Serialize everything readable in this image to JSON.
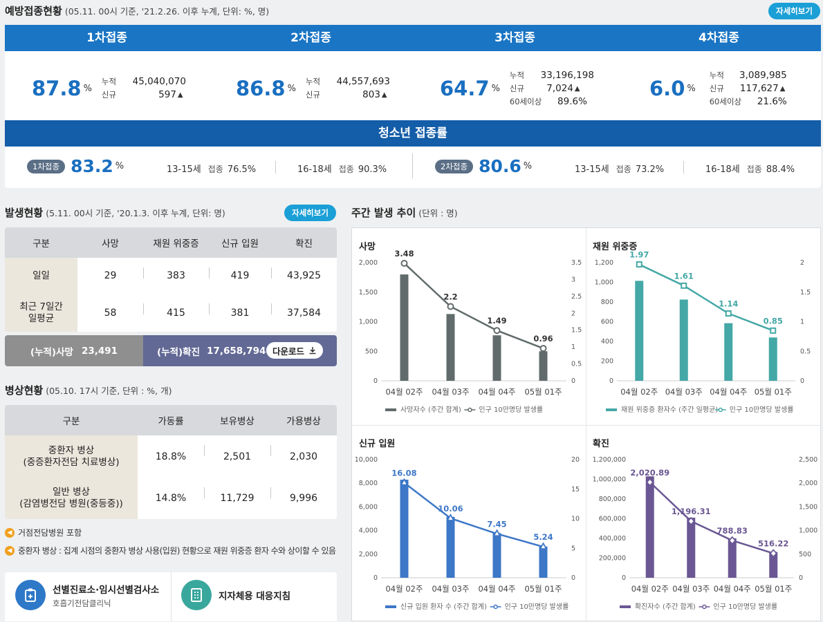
{
  "vacc": {
    "title": "예방접종현황",
    "subtitle": "(05.11. 00시 기준, '21.2.26. 이후 누계, 단위: %, 명)",
    "detail_btn": "자세히보기",
    "doses": [
      {
        "label": "1차접종",
        "rate": "87.8",
        "unit": "%",
        "cum_k": "누적",
        "cum_v": "45,040,070",
        "new_k": "신규",
        "new_v": "597",
        "arrow": "▲"
      },
      {
        "label": "2차접종",
        "rate": "86.8",
        "unit": "%",
        "cum_k": "누적",
        "cum_v": "44,557,693",
        "new_k": "신규",
        "new_v": "803",
        "arrow": "▲"
      },
      {
        "label": "3차접종",
        "rate": "64.7",
        "unit": "%",
        "cum_k": "누적",
        "cum_v": "33,196,198",
        "new_k": "신규",
        "new_v": "7,024",
        "arrow": "▲",
        "old_k": "60세이상",
        "old_v": "89.6%"
      },
      {
        "label": "4차접종",
        "rate": "6.0",
        "unit": "%",
        "cum_k": "누적",
        "cum_v": "3,089,985",
        "new_k": "신규",
        "new_v": "117,627",
        "arrow": "▲",
        "old_k": "60세이상",
        "old_v": "21.6%"
      }
    ],
    "teen": {
      "title": "청소년 접종률",
      "d1": {
        "pill": "1차접종",
        "rate": "83.2",
        "unit": "%",
        "a_age": "13-15세",
        "a_k": "접종",
        "a_v": "76.5%",
        "b_age": "16-18세",
        "b_k": "접종",
        "b_v": "90.3%"
      },
      "d2": {
        "pill": "2차접종",
        "rate": "80.6",
        "unit": "%",
        "a_age": "13-15세",
        "a_k": "접종",
        "a_v": "73.2%",
        "b_age": "16-18세",
        "b_k": "접종",
        "b_v": "88.4%"
      }
    }
  },
  "occur": {
    "title": "발생현황",
    "subtitle": "(5.11. 00시 기준, '20.1.3. 이후 누계, 단위: 명)",
    "detail_btn": "자세히보기",
    "headers": [
      "구분",
      "사망",
      "재원 위중증",
      "신규 입원",
      "확진"
    ],
    "rows": [
      {
        "label": "일일",
        "vals": [
          "29",
          "383",
          "419",
          "43,925"
        ]
      },
      {
        "label": "최근 7일간\n일평균",
        "vals": [
          "58",
          "415",
          "381",
          "37,584"
        ]
      }
    ],
    "cum_death_label": "(누적)사망",
    "cum_death": "23,491",
    "cum_conf_label": "(누적)확진",
    "cum_conf": "17,658,794",
    "download": "다운로드"
  },
  "beds": {
    "title": "병상현황",
    "subtitle": "(05.10. 17시 기준, 단위 : %, 개)",
    "headers": [
      "구분",
      "가동률",
      "보유병상",
      "가용병상"
    ],
    "rows": [
      {
        "label": "중환자 병상\n(중증환자전담 치료병상)",
        "vals": [
          "18.8%",
          "2,501",
          "2,030"
        ]
      },
      {
        "label": "일반 병상\n(감염병전담 병원(중등중))",
        "vals": [
          "14.8%",
          "11,729",
          "9,996"
        ]
      }
    ],
    "note1": "거점전담병원 포함",
    "note2": "중환자 병상 : 집계 시점의 중환자 병상 사용(입원) 현황으로 재원 위중증 환자 수와 상이할 수 있음"
  },
  "links": {
    "l1_title": "선별진료소·임시선별검사소",
    "l1_sub": "호흡기전담클리닉",
    "l2_title": "지자체용 대응지침"
  },
  "trend": {
    "title": "주간 발생 추이",
    "subtitle": "(단위 : 명)"
  },
  "chart_data": [
    {
      "type": "bar",
      "title": "사망",
      "categories": [
        "04월 02주",
        "04월 03주",
        "04월 04주",
        "05월 01주"
      ],
      "series": [
        {
          "name": "사망자수 (주간 합계)",
          "values": [
            1800,
            1130,
            770,
            500
          ]
        },
        {
          "name": "인구 10만명당 발생률",
          "values": [
            3.48,
            2.2,
            1.49,
            0.96
          ],
          "axis": "right"
        }
      ],
      "ylim": [
        0,
        2000
      ],
      "yticks": [
        "0",
        "500",
        "1,000",
        "1,500",
        "2,000"
      ],
      "y2lim": [
        0,
        3.5
      ],
      "y2ticks": [
        "0",
        "0.5",
        "1",
        "1.5",
        "2",
        "2.5",
        "3",
        "3.5"
      ],
      "labels": [
        "3.48",
        "2.2",
        "1.49",
        "0.96"
      ],
      "bar_color": "#616b6b",
      "line_color": "#616b6b"
    },
    {
      "type": "bar",
      "title": "재원 위중증",
      "categories": [
        "04월 02주",
        "04월 03주",
        "04월 04주",
        "05월 01주"
      ],
      "series": [
        {
          "name": "재원 위중증 환자수 (주간 일평균)",
          "values": [
            1015,
            825,
            585,
            440
          ]
        },
        {
          "name": "인구 10만명당 발생률",
          "values": [
            1.97,
            1.61,
            1.14,
            0.85
          ],
          "axis": "right"
        }
      ],
      "ylim": [
        0,
        1200
      ],
      "yticks": [
        "0",
        "200",
        "400",
        "600",
        "800",
        "1,000",
        "1,200"
      ],
      "y2lim": [
        0,
        2
      ],
      "y2ticks": [
        "0",
        "0.5",
        "1",
        "1.5",
        "2"
      ],
      "labels": [
        "1.97",
        "1.61",
        "1.14",
        "0.85"
      ],
      "bar_color": "#44a8a6",
      "line_color": "#44a8a6"
    },
    {
      "type": "bar",
      "title": "신규 입원",
      "categories": [
        "04월 02주",
        "04월 03주",
        "04월 04주",
        "05월 01주"
      ],
      "series": [
        {
          "name": "신규 입원 환자 수 (주간 합계)",
          "values": [
            8300,
            5150,
            3780,
            2650
          ]
        },
        {
          "name": "인구 10만명당 발생률",
          "values": [
            16.08,
            10.06,
            7.45,
            5.24
          ],
          "axis": "right"
        }
      ],
      "ylim": [
        0,
        10000
      ],
      "yticks": [
        "0",
        "2,000",
        "4,000",
        "6,000",
        "8,000",
        "10,000"
      ],
      "y2lim": [
        0,
        20
      ],
      "y2ticks": [
        "0",
        "5",
        "10",
        "15",
        "20"
      ],
      "labels": [
        "16.08",
        "10.06",
        "7.45",
        "5.24"
      ],
      "bar_color": "#3d77c7",
      "line_color": "#3d77c7"
    },
    {
      "type": "bar",
      "title": "확진",
      "categories": [
        "04월 02주",
        "04월 03주",
        "04월 04주",
        "05월 01주"
      ],
      "series": [
        {
          "name": "확진자수 (주간 합계)",
          "values": [
            1030000,
            610000,
            400000,
            262000
          ]
        },
        {
          "name": "인구 10만명당 발생률",
          "values": [
            2020.89,
            1196.31,
            788.83,
            516.22
          ],
          "axis": "right"
        }
      ],
      "ylim": [
        0,
        1200000
      ],
      "yticks": [
        "0",
        "200,000",
        "400,000",
        "600,000",
        "800,000",
        "1,000,000",
        "1,200,000"
      ],
      "y2lim": [
        0,
        2500
      ],
      "y2ticks": [
        "0",
        "500",
        "1,000",
        "1,500",
        "2,000",
        "2,500"
      ],
      "labels": [
        "2,020.89",
        "1,196.31",
        "788.83",
        "516.22"
      ],
      "bar_color": "#6a5793",
      "line_color": "#6a5793"
    }
  ]
}
